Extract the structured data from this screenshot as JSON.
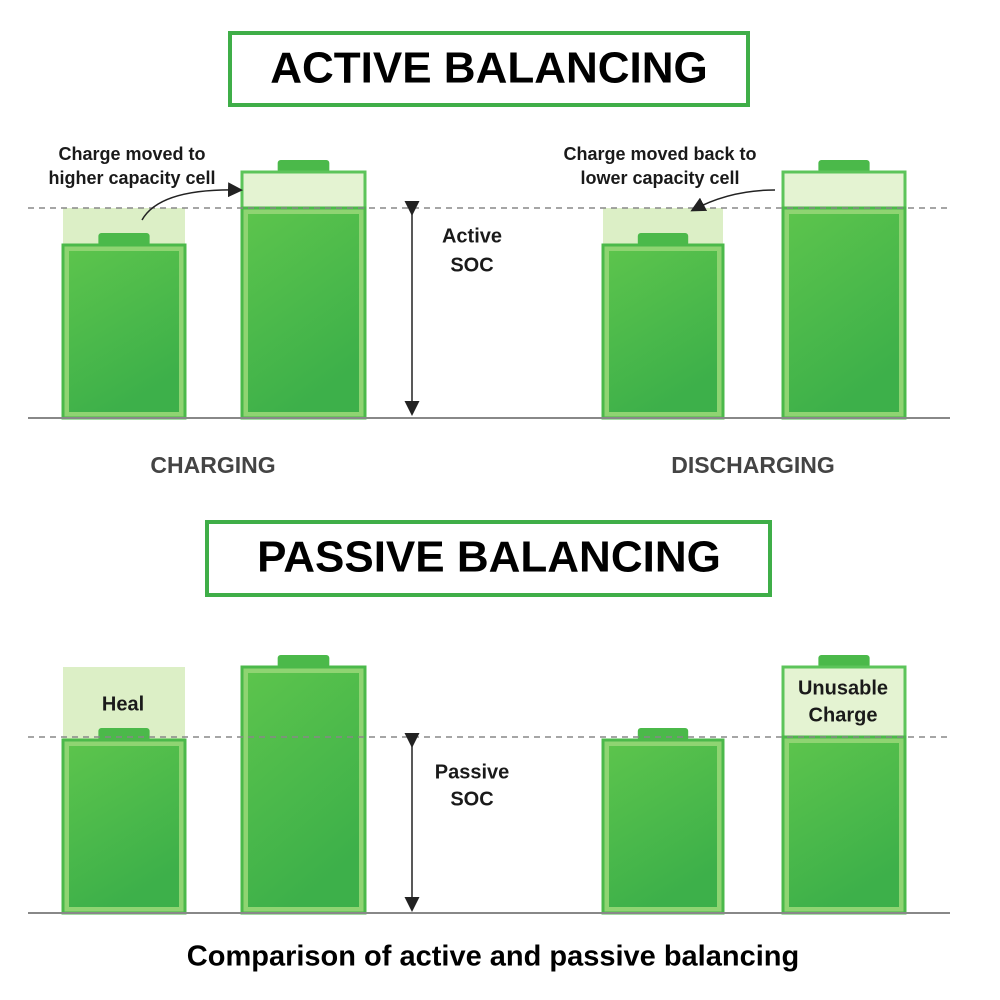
{
  "active": {
    "title": "ACTIVE BALANCING",
    "soc_label": [
      "Active",
      "SOC"
    ],
    "charging": {
      "annotation": [
        "Charge moved to",
        "higher capacity cell"
      ],
      "label": "CHARGING"
    },
    "discharging": {
      "annotation": [
        "Charge moved back to",
        "lower capacity cell"
      ],
      "label": "DISCHARGING"
    }
  },
  "passive": {
    "title": "PASSIVE BALANCING",
    "soc_label": [
      "Passive",
      "SOC"
    ],
    "left_label": "Heal",
    "right_label": [
      "Unusable",
      "Charge"
    ]
  },
  "caption": "Comparison of active and passive balancing"
}
